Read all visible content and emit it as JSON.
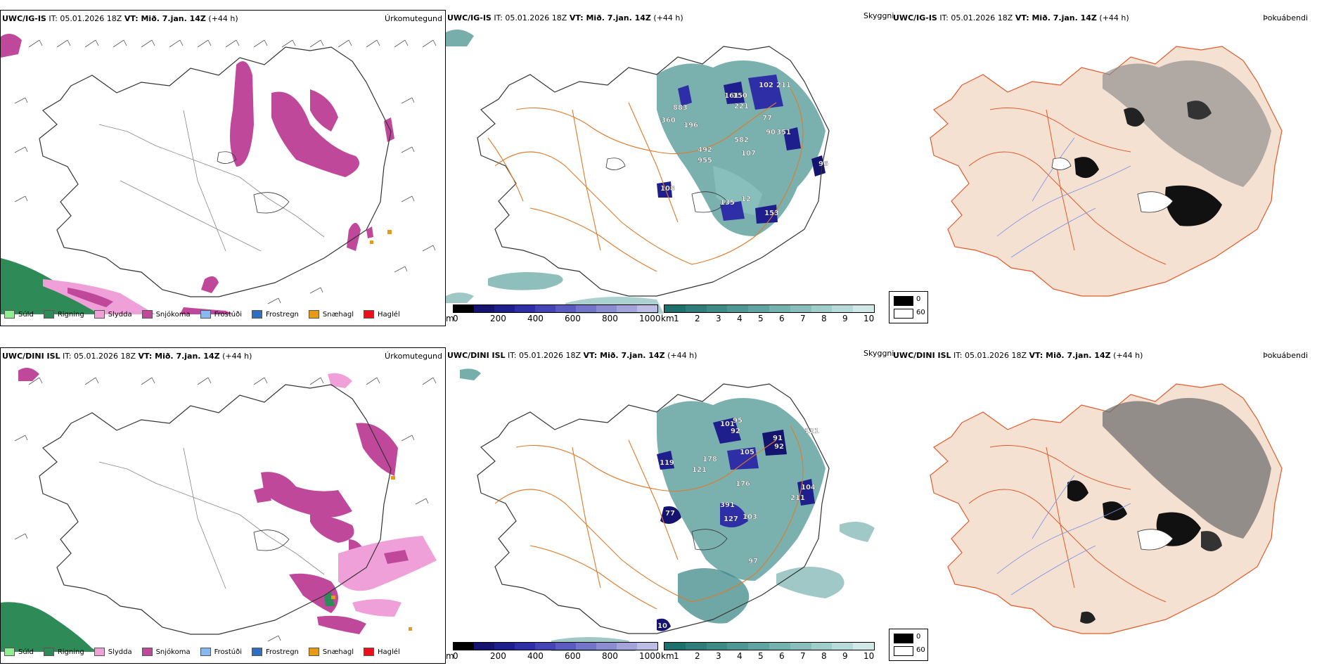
{
  "panels": {
    "top": {
      "left": {
        "model": "UWC/IG-IS",
        "it": "IT: 05.01.2026 18Z",
        "vt": "VT: Mið. 7.jan. 14Z",
        "lead": "(+44 h)",
        "param": "Úrkomutegund"
      },
      "mid": {
        "model": "UWC/IG-IS",
        "it": "IT: 05.01.2026 18Z",
        "vt": "VT: Mið. 7.jan. 14Z",
        "lead": "(+44 h)",
        "param": "Skyggni"
      },
      "right": {
        "model": "UWC/IG-IS",
        "it": "IT: 05.01.2026 18Z",
        "vt": "VT: Mið. 7.jan. 14Z",
        "lead": "(+44 h)",
        "param": "Þokuábendi"
      }
    },
    "bottom": {
      "left": {
        "model": "UWC/DINI ISL",
        "it": "IT: 05.01.2026 18Z",
        "vt": "VT: Mið. 7.jan. 14Z",
        "lead": "(+44 h)",
        "param": "Úrkomutegund"
      },
      "mid": {
        "model": "UWC/DINI ISL",
        "it": "IT: 05.01.2026 18Z",
        "vt": "VT: Mið. 7.jan. 14Z",
        "lead": "(+44 h)",
        "param": "Skyggni"
      },
      "right": {
        "model": "UWC/DINI ISL",
        "it": "IT: 05.01.2026 18Z",
        "vt": "VT: Mið. 7.jan. 14Z",
        "lead": "(+44 h)",
        "param": "Þokuábendi"
      }
    }
  },
  "precip_legend": [
    {
      "label": "Súld",
      "color": "#90ee90"
    },
    {
      "label": "Rigning",
      "color": "#2e8b57"
    },
    {
      "label": "Slydda",
      "color": "#f0a0d8"
    },
    {
      "label": "Snjókoma",
      "color": "#c0489a"
    },
    {
      "label": "Frostúði",
      "color": "#87b8ee"
    },
    {
      "label": "Frostregn",
      "color": "#2f6fbf"
    },
    {
      "label": "Snæhagl",
      "color": "#e69a1a"
    },
    {
      "label": "Haglél",
      "color": "#e8101a"
    }
  ],
  "ceiling_bar": {
    "unit": "m",
    "ticks": [
      "0",
      "200",
      "400",
      "600",
      "800",
      "1000"
    ],
    "colors": [
      "#000000",
      "#141470",
      "#1e1e8c",
      "#2e2ea6",
      "#4444b4",
      "#5b5bbf",
      "#7474c8",
      "#8c8cd0",
      "#a4a4da",
      "#bcbce4"
    ]
  },
  "visibility_bar": {
    "unit": "km",
    "ticks": [
      "1",
      "2",
      "3",
      "4",
      "5",
      "6",
      "7",
      "8",
      "9",
      "10"
    ],
    "colors": [
      "#1f6f6c",
      "#2e7d7a",
      "#3d8a87",
      "#4e9794",
      "#60a4a1",
      "#73b2af",
      "#88bfbc",
      "#9ecdca",
      "#b6dbd9",
      "#d0e9e7"
    ]
  },
  "fog_legend": {
    "dark_label": "0",
    "light_label": "60"
  },
  "ceiling_labels_top": [
    "883",
    "196",
    "360",
    "492",
    "955",
    "161",
    "150",
    "102",
    "221",
    "211",
    "582",
    "77",
    "90",
    "351",
    "107",
    "108",
    "135",
    "12",
    "153",
    "96"
  ],
  "ceiling_labels_bottom": [
    "95",
    "101",
    "92",
    "91",
    "92",
    "105",
    "119",
    "121",
    "178",
    "176",
    "391",
    "104",
    "127",
    "103",
    "77",
    "10",
    "97",
    "121",
    "211"
  ]
}
